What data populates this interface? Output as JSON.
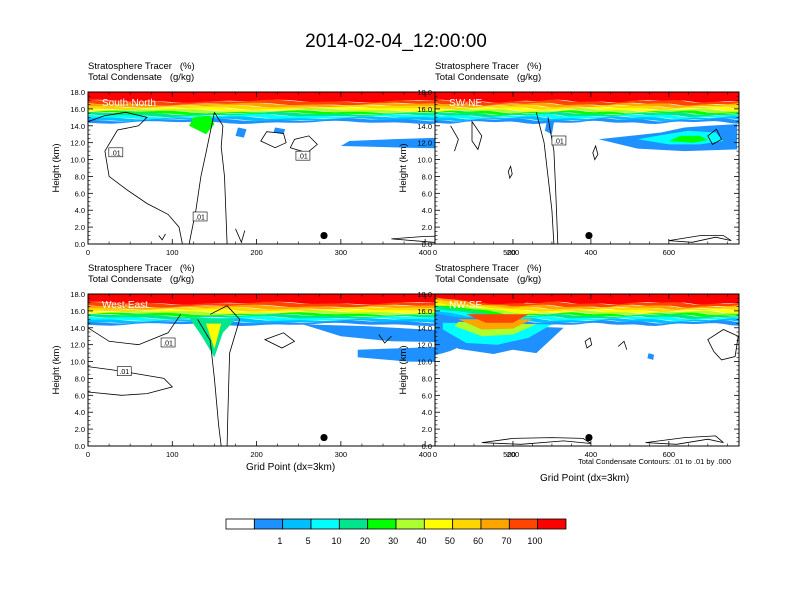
{
  "title": "2014-02-04_12:00:00",
  "panel_heading": {
    "line1": "Stratosphere Tracer   (%)",
    "line2": "Total Condensate   (g/kg)"
  },
  "footnote": "Total Condensate Contours: .01 to .01 by .000",
  "xaxis_title": "Grid Point (dx=3km)",
  "colors": {
    "levels": [
      "#ffffff",
      "#1e90ff",
      "#00bfff",
      "#00ffff",
      "#00e68c",
      "#00ff00",
      "#adff2f",
      "#ffff00",
      "#ffd700",
      "#ffa500",
      "#ff4500",
      "#ff0000"
    ],
    "contour": "#000000"
  },
  "colorbar_labels": [
    "1",
    "5",
    "10",
    "20",
    "30",
    "40",
    "50",
    "60",
    "70",
    "100"
  ],
  "chart_data": [
    {
      "type": "heatmap",
      "name": "South-North",
      "ylabel": "Height (km)",
      "xlim": [
        0,
        560
      ],
      "ylim": [
        0,
        18
      ],
      "xticks": [
        "0",
        "100",
        "200",
        "300",
        "400",
        "500"
      ],
      "yticks": [
        "0.0",
        "2.0",
        "4.0",
        "6.0",
        "8.0",
        "10.0",
        "12.0",
        "14.0",
        "16.0",
        "18.0"
      ],
      "contour_labels": [
        ".01",
        ".01",
        ".01"
      ],
      "marker": [
        280,
        1.0
      ]
    },
    {
      "type": "heatmap",
      "name": "SW-NE",
      "ylabel": "Height (km)",
      "xlim": [
        0,
        780
      ],
      "ylim": [
        0,
        18
      ],
      "xticks": [
        "0",
        "200",
        "400",
        "600"
      ],
      "yticks": [
        "0.0",
        "2.0",
        "4.0",
        "6.0",
        "8.0",
        "10.0",
        "12.0",
        "14.0",
        "16.0",
        "18.0"
      ],
      "contour_labels": [
        ".01"
      ],
      "marker": [
        395,
        1.0
      ]
    },
    {
      "type": "heatmap",
      "name": "West-East",
      "ylabel": "Height (km)",
      "xlim": [
        0,
        560
      ],
      "ylim": [
        0,
        18
      ],
      "xticks": [
        "0",
        "100",
        "200",
        "300",
        "400",
        "500"
      ],
      "yticks": [
        "0.0",
        "2.0",
        "4.0",
        "6.0",
        "8.0",
        "10.0",
        "12.0",
        "14.0",
        "16.0",
        "18.0"
      ],
      "contour_labels": [
        ".01",
        ".01"
      ],
      "marker": [
        280,
        1.0
      ]
    },
    {
      "type": "heatmap",
      "name": "NW-SE",
      "ylabel": "Height (km)",
      "xlim": [
        0,
        780
      ],
      "ylim": [
        0,
        18
      ],
      "xticks": [
        "0",
        "200",
        "400",
        "600"
      ],
      "yticks": [
        "0.0",
        "2.0",
        "4.0",
        "6.0",
        "8.0",
        "10.0",
        "12.0",
        "14.0",
        "16.0",
        "18.0"
      ],
      "contour_labels": [],
      "marker": [
        395,
        1.0
      ]
    }
  ]
}
